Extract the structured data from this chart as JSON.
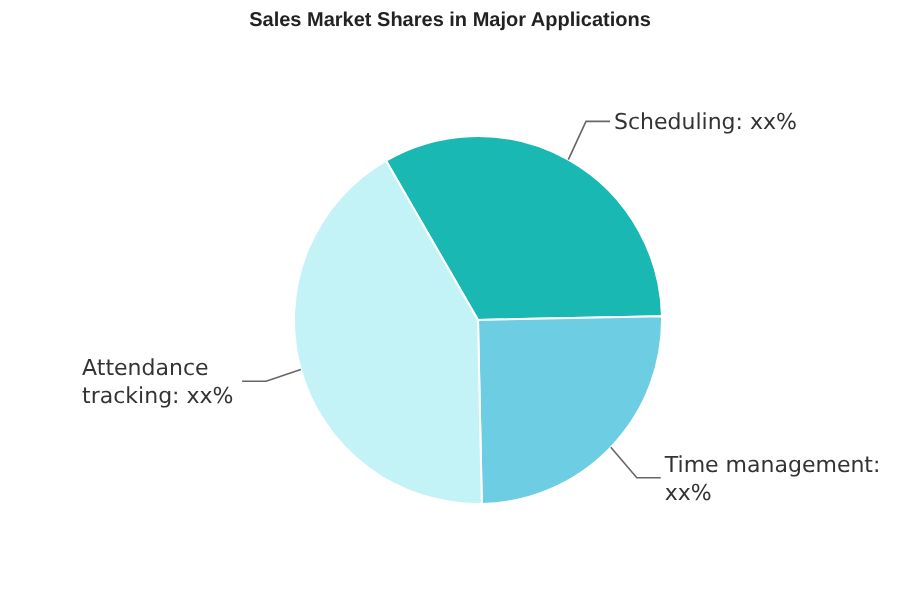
{
  "chart_data": {
    "type": "pie",
    "title": "Sales Market Shares in Major Applications",
    "categories": [
      "Scheduling: xx%",
      "Time management: xx%",
      "Attendance tracking: xx%"
    ],
    "values": [
      33,
      25,
      42
    ],
    "colors": [
      "#19b8b3",
      "#6ccde3",
      "#c4f3f7"
    ]
  }
}
